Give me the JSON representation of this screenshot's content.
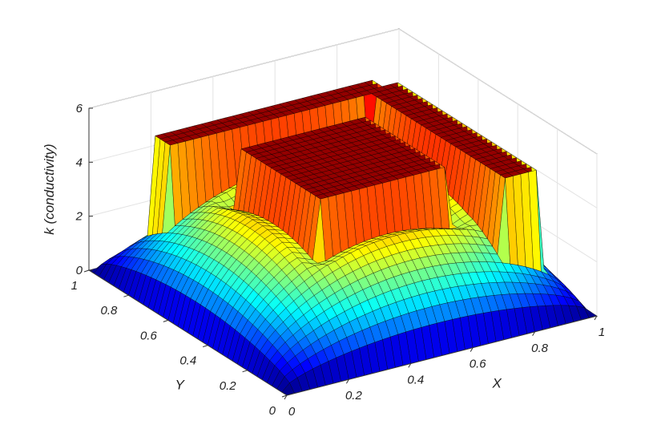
{
  "chart_data": {
    "type": "surface",
    "xlabel": "X",
    "ylabel": "Y",
    "zlabel": "k (conductivity)",
    "xlim": [
      0,
      1
    ],
    "ylim": [
      0,
      1
    ],
    "zlim": [
      0,
      6
    ],
    "x_ticks": [
      "0",
      "0.2",
      "0.4",
      "0.6",
      "0.8",
      "1"
    ],
    "y_ticks": [
      "0",
      "0.2",
      "0.4",
      "0.6",
      "0.8",
      "1"
    ],
    "z_ticks": [
      "0",
      "2",
      "4",
      "6"
    ],
    "grid": true,
    "colormap": "jet",
    "edge_color": "#000000",
    "z_max_plateau": 5.0,
    "description_features": {
      "central_plateau": {
        "x": [
          0.3,
          0.7
        ],
        "y": [
          0.3,
          0.7
        ],
        "z": 5.0
      },
      "bars": [
        {
          "x": [
            0.15,
            0.85
          ],
          "y": [
            0.82,
            0.9
          ],
          "z": 5.0
        },
        {
          "x": [
            0.8,
            0.9
          ],
          "y": [
            0.15,
            0.85
          ],
          "z": 5.0
        }
      ]
    }
  }
}
